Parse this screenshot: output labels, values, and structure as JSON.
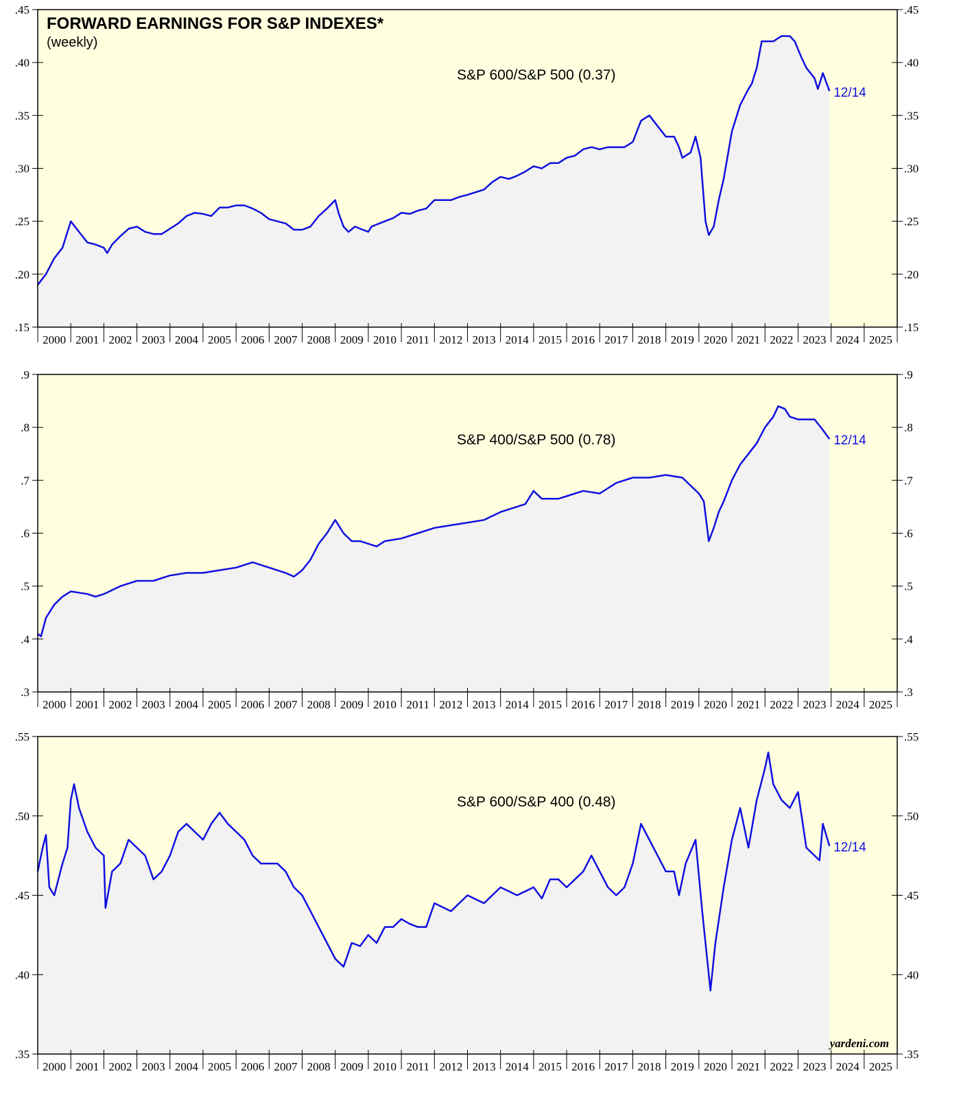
{
  "chart_data": [
    {
      "type": "line",
      "title": "FORWARD EARNINGS FOR S&P INDEXES*",
      "subtitle": "(weekly)",
      "x": [
        2000.0,
        2000.25,
        2000.5,
        2000.75,
        2001.0,
        2001.25,
        2001.5,
        2001.75,
        2002.0,
        2002.1,
        2002.25,
        2002.5,
        2002.75,
        2003.0,
        2003.25,
        2003.5,
        2003.75,
        2004.0,
        2004.25,
        2004.5,
        2004.75,
        2005.0,
        2005.25,
        2005.5,
        2005.75,
        2006.0,
        2006.25,
        2006.5,
        2006.75,
        2007.0,
        2007.25,
        2007.5,
        2007.75,
        2008.0,
        2008.25,
        2008.5,
        2008.75,
        2009.0,
        2009.1,
        2009.25,
        2009.4,
        2009.6,
        2009.75,
        2010.0,
        2010.1,
        2010.5,
        2010.75,
        2011.0,
        2011.25,
        2011.5,
        2011.75,
        2012.0,
        2012.5,
        2012.75,
        2013.0,
        2013.5,
        2013.75,
        2014.0,
        2014.25,
        2014.5,
        2014.75,
        2015.0,
        2015.25,
        2015.5,
        2015.75,
        2016.0,
        2016.25,
        2016.5,
        2016.75,
        2017.0,
        2017.25,
        2017.5,
        2017.75,
        2018.0,
        2018.25,
        2018.5,
        2018.75,
        2019.0,
        2019.25,
        2019.4,
        2019.5,
        2019.75,
        2019.9,
        2020.05,
        2020.2,
        2020.3,
        2020.45,
        2020.6,
        2020.75,
        2021.0,
        2021.25,
        2021.5,
        2021.6,
        2021.75,
        2021.9,
        2022.25,
        2022.5,
        2022.75,
        2022.9,
        2023.1,
        2023.25,
        2023.5,
        2023.6,
        2023.75,
        2023.95
      ],
      "series": [
        {
          "name": "S&P 600/S&P 500 (0.37)",
          "color": "#1010e0",
          "values": [
            0.19,
            0.2,
            0.215,
            0.225,
            0.25,
            0.24,
            0.23,
            0.228,
            0.225,
            0.22,
            0.228,
            0.236,
            0.243,
            0.245,
            0.24,
            0.238,
            0.238,
            0.243,
            0.248,
            0.255,
            0.258,
            0.257,
            0.255,
            0.263,
            0.263,
            0.265,
            0.265,
            0.262,
            0.258,
            0.252,
            0.25,
            0.248,
            0.242,
            0.242,
            0.245,
            0.255,
            0.262,
            0.27,
            0.258,
            0.245,
            0.24,
            0.245,
            0.243,
            0.24,
            0.245,
            0.25,
            0.253,
            0.258,
            0.257,
            0.26,
            0.262,
            0.27,
            0.27,
            0.273,
            0.275,
            0.28,
            0.287,
            0.292,
            0.29,
            0.293,
            0.297,
            0.302,
            0.3,
            0.305,
            0.305,
            0.31,
            0.312,
            0.318,
            0.32,
            0.318,
            0.32,
            0.32,
            0.32,
            0.325,
            0.345,
            0.35,
            0.34,
            0.33,
            0.33,
            0.32,
            0.31,
            0.315,
            0.33,
            0.31,
            0.25,
            0.237,
            0.245,
            0.27,
            0.29,
            0.335,
            0.36,
            0.375,
            0.38,
            0.395,
            0.42,
            0.42,
            0.425,
            0.425,
            0.42,
            0.405,
            0.395,
            0.385,
            0.375,
            0.39,
            0.373
          ]
        }
      ],
      "annotation": "12/14",
      "xlim": [
        2000,
        2026
      ],
      "xticks": [
        2000,
        2001,
        2002,
        2003,
        2004,
        2005,
        2006,
        2007,
        2008,
        2009,
        2010,
        2011,
        2012,
        2013,
        2014,
        2015,
        2016,
        2017,
        2018,
        2019,
        2020,
        2021,
        2022,
        2023,
        2024,
        2025
      ],
      "ylim": [
        0.15,
        0.45
      ],
      "yticks": [
        {
          "value": 0.15,
          "label": ".15"
        },
        {
          "value": 0.2,
          "label": ".20"
        },
        {
          "value": 0.25,
          "label": ".25"
        },
        {
          "value": 0.3,
          "label": ".30"
        },
        {
          "value": 0.35,
          "label": ".35"
        },
        {
          "value": 0.4,
          "label": ".40"
        },
        {
          "value": 0.45,
          "label": ".45"
        }
      ]
    },
    {
      "type": "line",
      "x": [
        2000.0,
        2000.1,
        2000.25,
        2000.5,
        2000.75,
        2001.0,
        2001.5,
        2001.75,
        2002.0,
        2002.5,
        2003.0,
        2003.5,
        2004.0,
        2004.5,
        2005.0,
        2005.5,
        2006.0,
        2006.5,
        2007.0,
        2007.5,
        2007.75,
        2008.0,
        2008.25,
        2008.5,
        2008.75,
        2009.0,
        2009.25,
        2009.5,
        2009.75,
        2010.0,
        2010.25,
        2010.5,
        2011.0,
        2011.5,
        2012.0,
        2012.5,
        2013.0,
        2013.5,
        2014.0,
        2014.5,
        2014.75,
        2015.0,
        2015.25,
        2015.75,
        2016.0,
        2016.5,
        2017.0,
        2017.5,
        2018.0,
        2018.5,
        2019.0,
        2019.5,
        2019.75,
        2020.0,
        2020.15,
        2020.3,
        2020.45,
        2020.6,
        2020.75,
        2021.0,
        2021.25,
        2021.5,
        2021.75,
        2022.0,
        2022.25,
        2022.4,
        2022.6,
        2022.75,
        2023.0,
        2023.25,
        2023.5,
        2023.75,
        2023.95
      ],
      "series": [
        {
          "name": "S&P 400/S&P 500 (0.78)",
          "color": "#1010e0",
          "values": [
            0.41,
            0.405,
            0.44,
            0.465,
            0.48,
            0.49,
            0.485,
            0.48,
            0.485,
            0.5,
            0.51,
            0.51,
            0.52,
            0.525,
            0.525,
            0.53,
            0.535,
            0.545,
            0.535,
            0.525,
            0.518,
            0.53,
            0.55,
            0.58,
            0.6,
            0.625,
            0.6,
            0.585,
            0.585,
            0.58,
            0.575,
            0.585,
            0.59,
            0.6,
            0.61,
            0.615,
            0.62,
            0.625,
            0.64,
            0.65,
            0.655,
            0.68,
            0.665,
            0.665,
            0.67,
            0.68,
            0.675,
            0.695,
            0.705,
            0.705,
            0.71,
            0.705,
            0.69,
            0.675,
            0.66,
            0.585,
            0.61,
            0.64,
            0.66,
            0.7,
            0.73,
            0.75,
            0.77,
            0.8,
            0.82,
            0.84,
            0.835,
            0.82,
            0.815,
            0.815,
            0.815,
            0.795,
            0.778
          ]
        }
      ],
      "annotation": "12/14",
      "xlim": [
        2000,
        2026
      ],
      "xticks": [
        2000,
        2001,
        2002,
        2003,
        2004,
        2005,
        2006,
        2007,
        2008,
        2009,
        2010,
        2011,
        2012,
        2013,
        2014,
        2015,
        2016,
        2017,
        2018,
        2019,
        2020,
        2021,
        2022,
        2023,
        2024,
        2025
      ],
      "ylim": [
        0.3,
        0.9
      ],
      "yticks": [
        {
          "value": 0.3,
          "label": ".3"
        },
        {
          "value": 0.4,
          "label": ".4"
        },
        {
          "value": 0.5,
          "label": ".5"
        },
        {
          "value": 0.6,
          "label": ".6"
        },
        {
          "value": 0.7,
          "label": ".7"
        },
        {
          "value": 0.8,
          "label": ".8"
        },
        {
          "value": 0.9,
          "label": ".9"
        }
      ]
    },
    {
      "type": "line",
      "credit": "yardeni.com",
      "x": [
        2000.0,
        2000.15,
        2000.25,
        2000.35,
        2000.5,
        2000.75,
        2000.9,
        2001.0,
        2001.1,
        2001.25,
        2001.5,
        2001.75,
        2002.0,
        2002.05,
        2002.25,
        2002.5,
        2002.75,
        2003.0,
        2003.25,
        2003.5,
        2003.75,
        2004.0,
        2004.25,
        2004.5,
        2004.75,
        2005.0,
        2005.25,
        2005.5,
        2005.75,
        2006.0,
        2006.25,
        2006.5,
        2006.75,
        2007.0,
        2007.25,
        2007.5,
        2007.75,
        2008.0,
        2008.25,
        2008.5,
        2008.75,
        2009.0,
        2009.25,
        2009.5,
        2009.75,
        2010.0,
        2010.25,
        2010.5,
        2010.75,
        2011.0,
        2011.25,
        2011.5,
        2011.75,
        2012.0,
        2012.5,
        2012.75,
        2013.0,
        2013.5,
        2014.0,
        2014.5,
        2015.0,
        2015.25,
        2015.5,
        2015.75,
        2016.0,
        2016.25,
        2016.5,
        2016.75,
        2017.0,
        2017.25,
        2017.5,
        2017.75,
        2018.0,
        2018.25,
        2018.5,
        2018.75,
        2019.0,
        2019.25,
        2019.4,
        2019.6,
        2019.9,
        2020.1,
        2020.25,
        2020.35,
        2020.5,
        2020.75,
        2021.0,
        2021.25,
        2021.5,
        2021.75,
        2022.0,
        2022.1,
        2022.25,
        2022.5,
        2022.75,
        2023.0,
        2023.25,
        2023.5,
        2023.65,
        2023.75,
        2023.95
      ],
      "series": [
        {
          "name": "S&P 600/S&P 400 (0.48)",
          "color": "#1010e0",
          "values": [
            0.465,
            0.48,
            0.488,
            0.455,
            0.45,
            0.47,
            0.48,
            0.51,
            0.52,
            0.505,
            0.49,
            0.48,
            0.475,
            0.442,
            0.465,
            0.47,
            0.485,
            0.48,
            0.475,
            0.46,
            0.465,
            0.475,
            0.49,
            0.495,
            0.49,
            0.485,
            0.495,
            0.502,
            0.495,
            0.49,
            0.485,
            0.475,
            0.47,
            0.47,
            0.47,
            0.465,
            0.455,
            0.45,
            0.44,
            0.43,
            0.42,
            0.41,
            0.405,
            0.42,
            0.418,
            0.425,
            0.42,
            0.43,
            0.43,
            0.435,
            0.432,
            0.43,
            0.43,
            0.445,
            0.44,
            0.445,
            0.45,
            0.445,
            0.455,
            0.45,
            0.455,
            0.448,
            0.46,
            0.46,
            0.455,
            0.46,
            0.465,
            0.475,
            0.465,
            0.455,
            0.45,
            0.455,
            0.47,
            0.495,
            0.485,
            0.475,
            0.465,
            0.465,
            0.45,
            0.47,
            0.485,
            0.44,
            0.41,
            0.39,
            0.42,
            0.455,
            0.485,
            0.505,
            0.48,
            0.51,
            0.53,
            0.54,
            0.52,
            0.51,
            0.505,
            0.515,
            0.48,
            0.475,
            0.472,
            0.495,
            0.481
          ]
        }
      ],
      "annotation": "12/14",
      "xlim": [
        2000,
        2026
      ],
      "xticks": [
        2000,
        2001,
        2002,
        2003,
        2004,
        2005,
        2006,
        2007,
        2008,
        2009,
        2010,
        2011,
        2012,
        2013,
        2014,
        2015,
        2016,
        2017,
        2018,
        2019,
        2020,
        2021,
        2022,
        2023,
        2024,
        2025
      ],
      "ylim": [
        0.35,
        0.55
      ],
      "yticks": [
        {
          "value": 0.35,
          "label": ".35"
        },
        {
          "value": 0.4,
          "label": ".40"
        },
        {
          "value": 0.45,
          "label": ".45"
        },
        {
          "value": 0.5,
          "label": ".50"
        },
        {
          "value": 0.55,
          "label": ".55"
        }
      ]
    }
  ]
}
